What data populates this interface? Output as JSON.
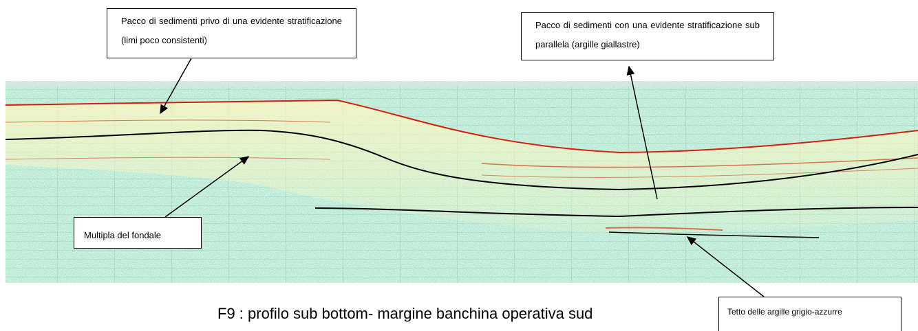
{
  "annotations": [
    {
      "label": "Pacco di sedimenti privo di una evidente stratificazione (limi poco consistenti)"
    },
    {
      "label": "Pacco di sedimenti con una evidente stratificazione sub parallela (argille giallastre)"
    },
    {
      "label": "Multipla del fondale"
    },
    {
      "label": "Tetto delle argille grigio-azzurre"
    }
  ],
  "caption": "F9 : profilo sub bottom- margine banchina operativa sud"
}
